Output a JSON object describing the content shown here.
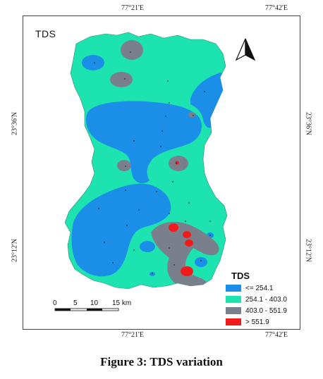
{
  "map": {
    "title": "TDS",
    "coords": {
      "top_left": "77°21'E",
      "top_right": "77°42'E",
      "bottom_left": "77°21'E",
      "bottom_right": "77°42'E",
      "left_upper": "23°36'N",
      "left_lower": "23°12'N",
      "right_upper": "23°36'N",
      "right_lower": "23°12'N"
    },
    "north_arrow": "north-arrow-icon",
    "scale": {
      "labels": [
        "0",
        "5",
        "10",
        "15 km"
      ]
    },
    "legend": {
      "title": "TDS",
      "items": [
        {
          "label": "<= 254.1",
          "color": "#1b8fe8"
        },
        {
          "label": "254.1 - 403.0",
          "color": "#1de3b0"
        },
        {
          "label": "403.0 - 551.9",
          "color": "#7a7f8c"
        },
        {
          "label": "> 551.9",
          "color": "#f21b1b"
        }
      ]
    }
  },
  "caption": "Figure 3: TDS variation"
}
